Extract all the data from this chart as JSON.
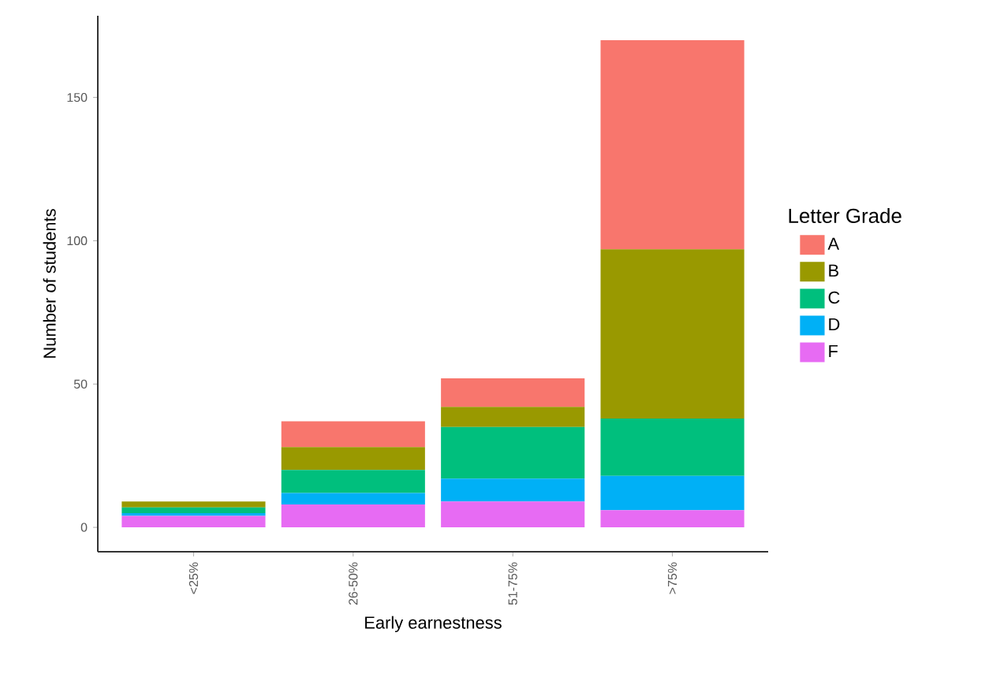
{
  "chart_data": {
    "type": "bar",
    "stacked": true,
    "xlabel": "Early earnestness",
    "ylabel": "Number of students",
    "legend_title": "Letter Grade",
    "legend": "right",
    "categories": [
      "<25%",
      "26-50%",
      "51-75%",
      ">75%"
    ],
    "series": [
      {
        "name": "F",
        "color": "#e76bf3",
        "values": [
          4,
          8,
          9,
          6
        ]
      },
      {
        "name": "D",
        "color": "#00b0f6",
        "values": [
          1,
          4,
          8,
          12
        ]
      },
      {
        "name": "C",
        "color": "#00bf7d",
        "values": [
          2,
          8,
          18,
          20
        ]
      },
      {
        "name": "B",
        "color": "#999900",
        "values": [
          2,
          8,
          7,
          59
        ]
      },
      {
        "name": "A",
        "color": "#f8766d",
        "values": [
          0,
          9,
          10,
          73
        ]
      }
    ],
    "ylim": [
      -8.5,
      178.5
    ],
    "yticks": [
      0,
      50,
      100,
      150
    ],
    "grid": false
  }
}
